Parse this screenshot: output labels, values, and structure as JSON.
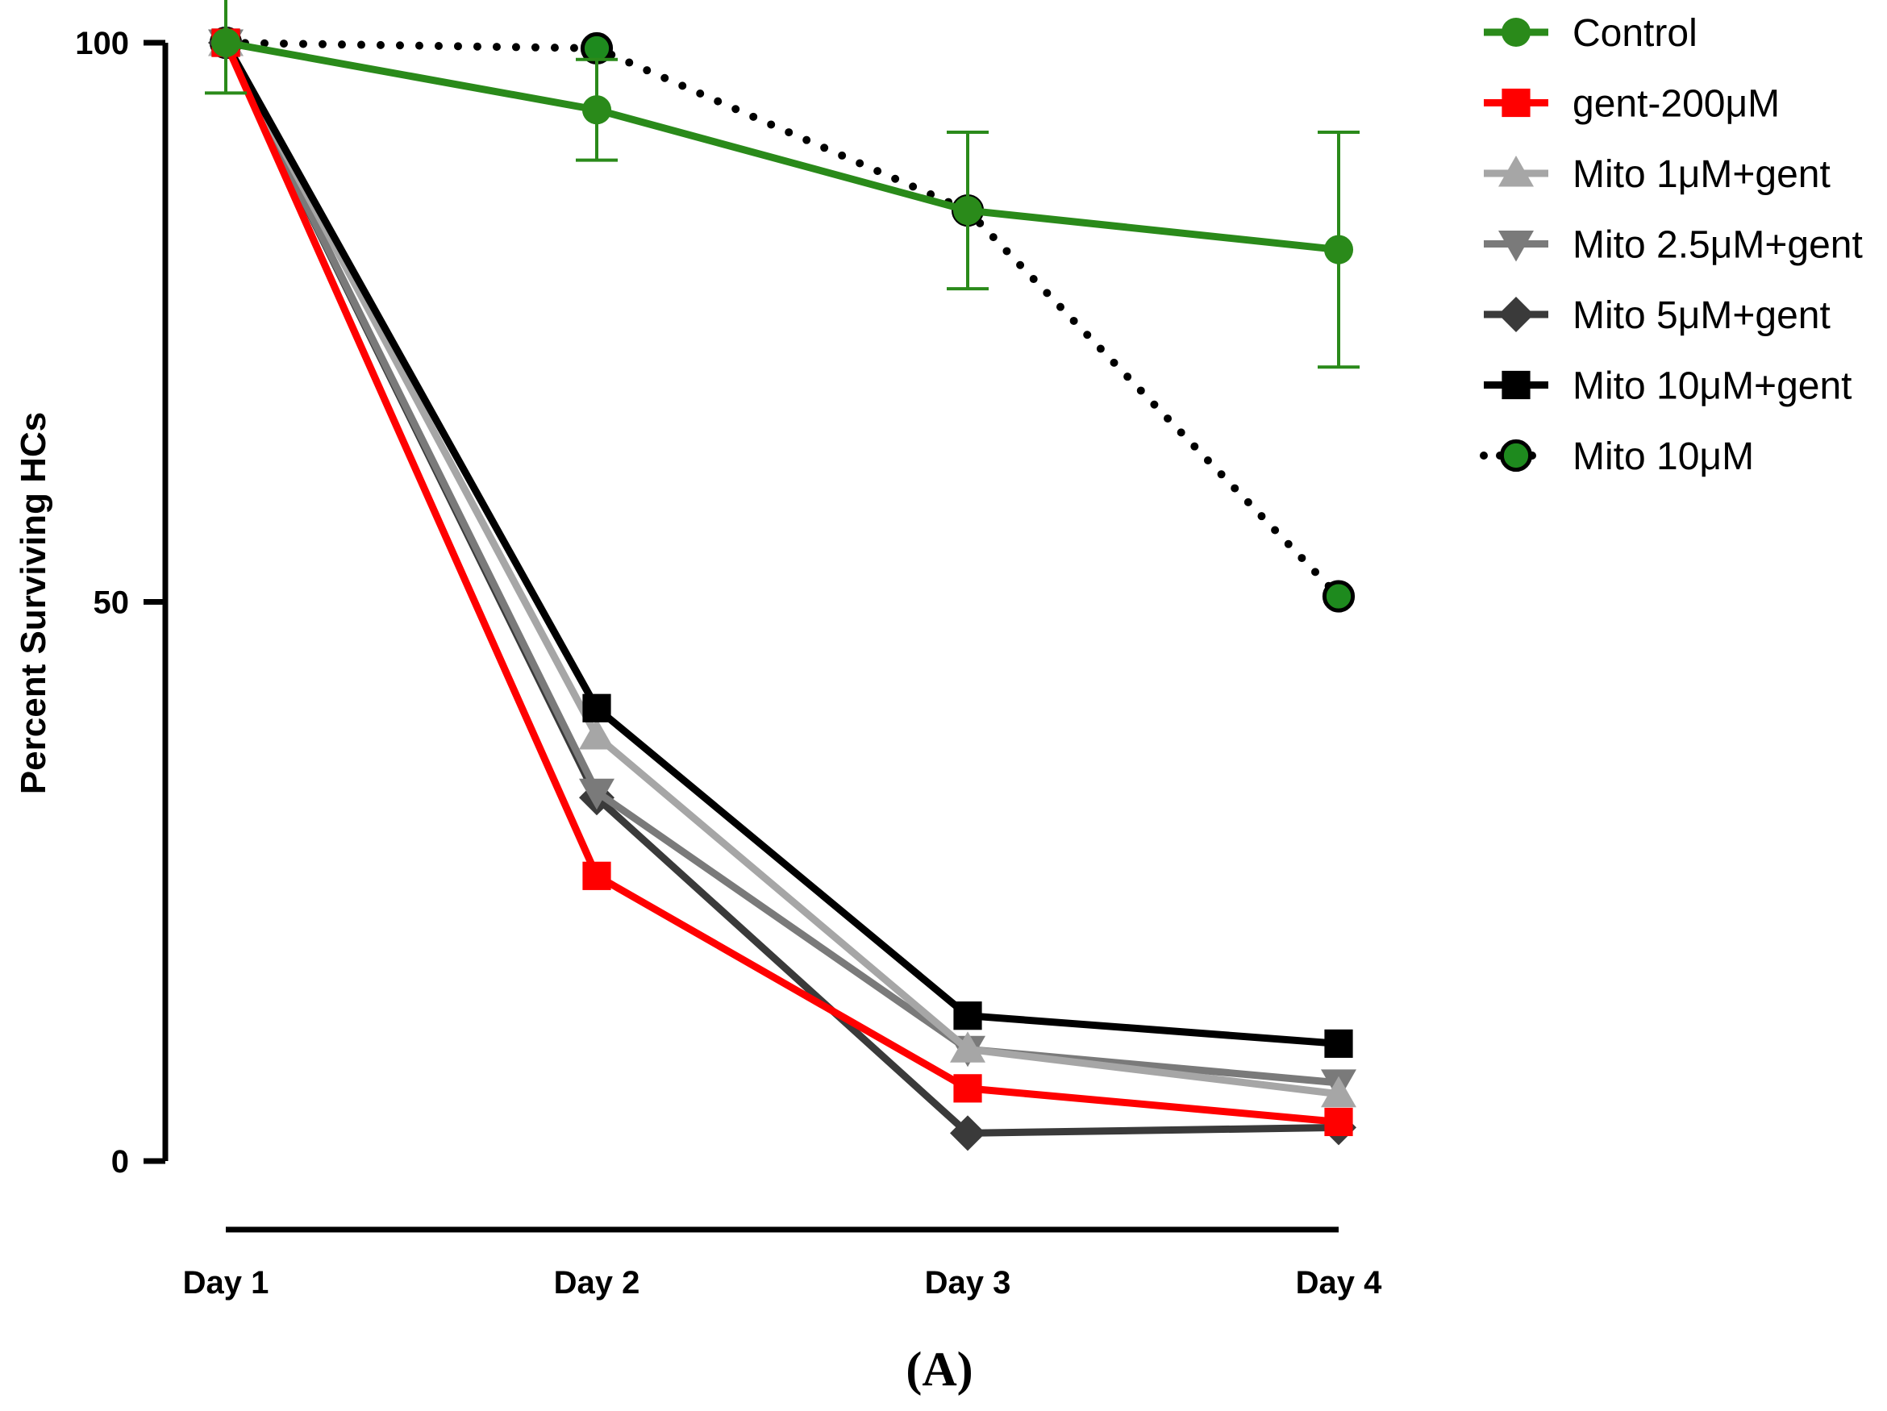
{
  "chart_data": {
    "type": "line",
    "title": "",
    "xlabel": "",
    "ylabel": "Percent Surviving HCs",
    "categories": [
      "Day 1",
      "Day 2",
      "Day 3",
      "Day 4"
    ],
    "ylim": [
      0,
      100
    ],
    "y_ticks": [
      "0",
      "50",
      "100"
    ],
    "grid": false,
    "legend_position": "top-right",
    "panel_label": "(A)",
    "series": [
      {
        "name": "Mito 10μM",
        "values": [
          100,
          99.5,
          85,
          50.5
        ],
        "color": "#1e8a1e",
        "marker": "circle-outlined",
        "line": "dotted",
        "line_color": "#000000"
      },
      {
        "name": "Mito 5μM+gent",
        "values": [
          100,
          32.5,
          2.5,
          3
        ],
        "color": "#3a3a3a",
        "marker": "diamond",
        "line": "solid"
      },
      {
        "name": "Mito 2.5μM+gent",
        "values": [
          100,
          33,
          10,
          7
        ],
        "color": "#7a7a7a",
        "marker": "triangle-down",
        "line": "solid"
      },
      {
        "name": "Mito 1μM+gent",
        "values": [
          100,
          38,
          10,
          6
        ],
        "color": "#a6a6a6",
        "marker": "triangle-up",
        "line": "solid"
      },
      {
        "name": "Mito 10μM+gent",
        "values": [
          100,
          40.5,
          13,
          10.5
        ],
        "color": "#000000",
        "marker": "square",
        "line": "solid"
      },
      {
        "name": "gent-200μM",
        "values": [
          100,
          25.5,
          6.5,
          3.5
        ],
        "color": "#ff0000",
        "marker": "square",
        "line": "solid"
      },
      {
        "name": "Control",
        "values": [
          100,
          94,
          85,
          81.5
        ],
        "color": "#2a8a1a",
        "marker": "circle",
        "line": "solid",
        "error": [
          4.5,
          4.5,
          7,
          10.5
        ]
      }
    ],
    "legend_order": [
      "Control",
      "gent-200μM",
      "Mito 1μM+gent",
      "Mito 2.5μM+gent",
      "Mito 5μM+gent",
      "Mito 10μM+gent",
      "Mito 10μM"
    ]
  }
}
